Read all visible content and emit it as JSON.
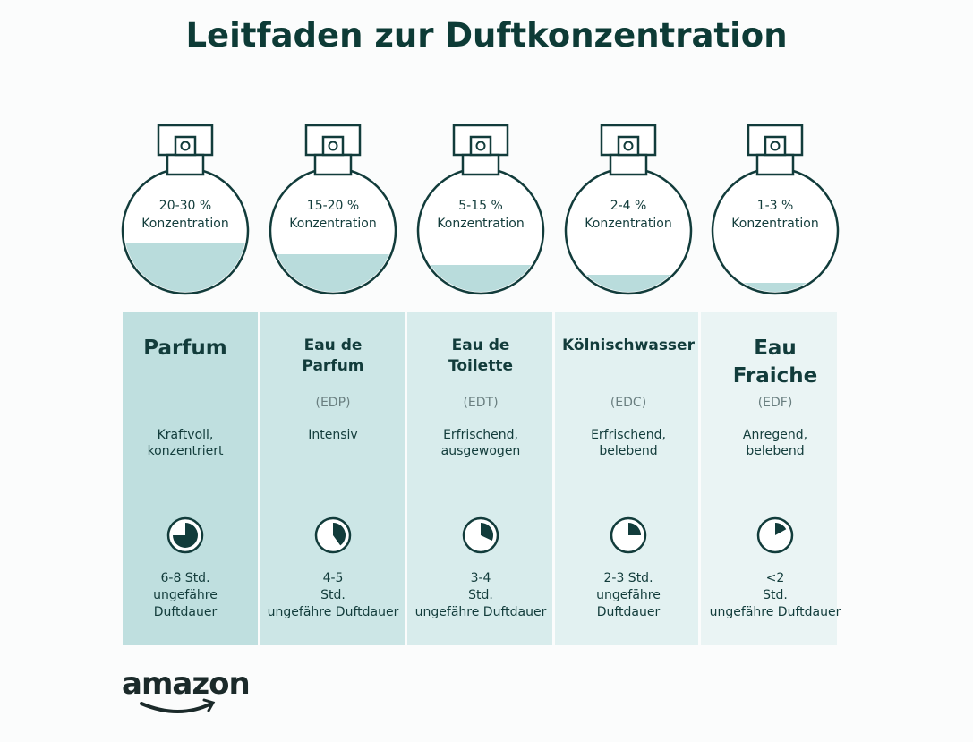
{
  "title": "Leitfaden zur Duftkonzentration",
  "columns": [
    {
      "concentration": "20-30 %",
      "concentration_label": "Konzentration",
      "name": [
        "Parfum"
      ],
      "abbreviation": null,
      "description": [
        "Kraftvoll,",
        "konzentriert"
      ],
      "duration": [
        "6-8 Std.",
        "ungefähre",
        "Duftdauer"
      ]
    },
    {
      "concentration": "15-20 %",
      "concentration_label": "Konzentration",
      "name": [
        "Eau de",
        "Parfum"
      ],
      "abbreviation": "(EDP)",
      "description": [
        "Intensiv"
      ],
      "duration": [
        "4-5",
        "Std.",
        "ungefähre Duftdauer"
      ]
    },
    {
      "concentration": "5-15 %",
      "concentration_label": "Konzentration",
      "name": [
        "Eau de",
        "Toilette"
      ],
      "abbreviation": "(EDT)",
      "description": [
        "Erfrischend,",
        "ausgewogen"
      ],
      "duration": [
        "3-4",
        "Std.",
        "ungefähre Duftdauer"
      ]
    },
    {
      "concentration": "2-4 %",
      "concentration_label": "Konzentration",
      "name": [
        "Kölnischwasser"
      ],
      "abbreviation": "(EDC)",
      "description": [
        "Erfrischend,",
        "belebend"
      ],
      "duration": [
        "2-3 Std.",
        "ungefähre",
        "Duftdauer"
      ]
    },
    {
      "concentration": "1-3 %",
      "concentration_label": "Konzentration",
      "name": [
        "Eau",
        "Fraiche"
      ],
      "abbreviation": "(EDF)",
      "description": [
        "Anregend,",
        "belebend"
      ],
      "duration": [
        "<2",
        "Std.",
        "ungefähre Duftdauer"
      ]
    }
  ],
  "logo": "amazon"
}
